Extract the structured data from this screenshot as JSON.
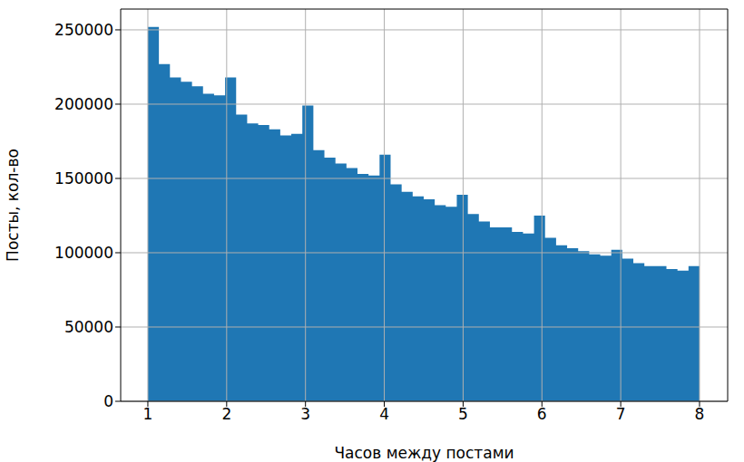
{
  "chart_data": {
    "type": "histogram",
    "x_label": "Часов между постами",
    "y_label": "Посты, кол-во",
    "bins": [
      1,
      1.14,
      1.28,
      1.42,
      1.56,
      1.7,
      1.84,
      1.98,
      2.12,
      2.26,
      2.4,
      2.54,
      2.68,
      2.82,
      2.96,
      3.1,
      3.24,
      3.38,
      3.52,
      3.66,
      3.8,
      3.94,
      4.08,
      4.22,
      4.36,
      4.5,
      4.64,
      4.78,
      4.92,
      5.06,
      5.2,
      5.34,
      5.48,
      5.62,
      5.76,
      5.9,
      6.04,
      6.18,
      6.32,
      6.46,
      6.6,
      6.74,
      6.88,
      7.02,
      7.16,
      7.3,
      7.44,
      7.58,
      7.72,
      7.86,
      8
    ],
    "values": [
      252000,
      227000,
      218000,
      215000,
      212000,
      207000,
      206000,
      218000,
      193000,
      187000,
      186000,
      183000,
      179000,
      180000,
      199000,
      169000,
      164000,
      160000,
      157000,
      153000,
      152000,
      166000,
      146000,
      141000,
      138000,
      136000,
      132000,
      131000,
      139000,
      126000,
      121000,
      117000,
      117000,
      114000,
      113000,
      125000,
      110000,
      105000,
      103000,
      101000,
      99000,
      98000,
      102000,
      96000,
      93000,
      91000,
      91000,
      89000,
      88000,
      91000
    ],
    "color": "#1f77b4",
    "xlim": [
      0.655,
      8.357
    ],
    "ylim": [
      0,
      264000
    ],
    "xticks": [
      1,
      2,
      3,
      4,
      5,
      6,
      7,
      8
    ],
    "yticks": [
      0,
      50000,
      100000,
      150000,
      200000,
      250000
    ],
    "grid": true
  }
}
